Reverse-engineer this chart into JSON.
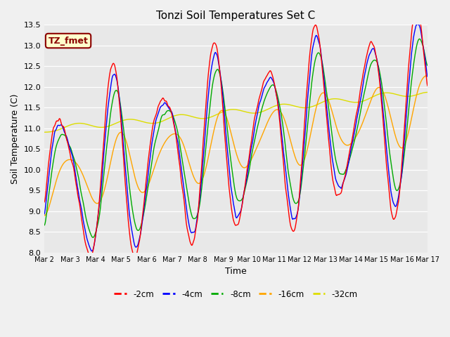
{
  "title": "Tonzi Soil Temperatures Set C",
  "xlabel": "Time",
  "ylabel": "Soil Temperature (C)",
  "ylim": [
    8.0,
    13.75
  ],
  "ylim_display": [
    8.0,
    13.5
  ],
  "bg_color": "#e8e8e8",
  "fig_bg": "#f0f0f0",
  "annotation_text": "TZ_fmet",
  "annotation_color": "#8b0000",
  "annotation_bg": "#ffffcc",
  "annotation_border": "#8b0000",
  "series_colors": {
    "-2cm": "#ff0000",
    "-4cm": "#0000ff",
    "-8cm": "#00aa00",
    "-16cm": "#ffa500",
    "-32cm": "#dddd00"
  },
  "x_tick_labels": [
    "Mar 2",
    "Mar 3",
    "Mar 4",
    "Mar 5",
    "Mar 6",
    "Mar 7",
    "Mar 8",
    "Mar 9",
    "Mar 10",
    "Mar 11",
    "Mar 12",
    "Mar 13",
    "Mar 14",
    "Mar 15",
    "Mar 16",
    "Mar 17"
  ],
  "num_points": 960,
  "days": 15
}
